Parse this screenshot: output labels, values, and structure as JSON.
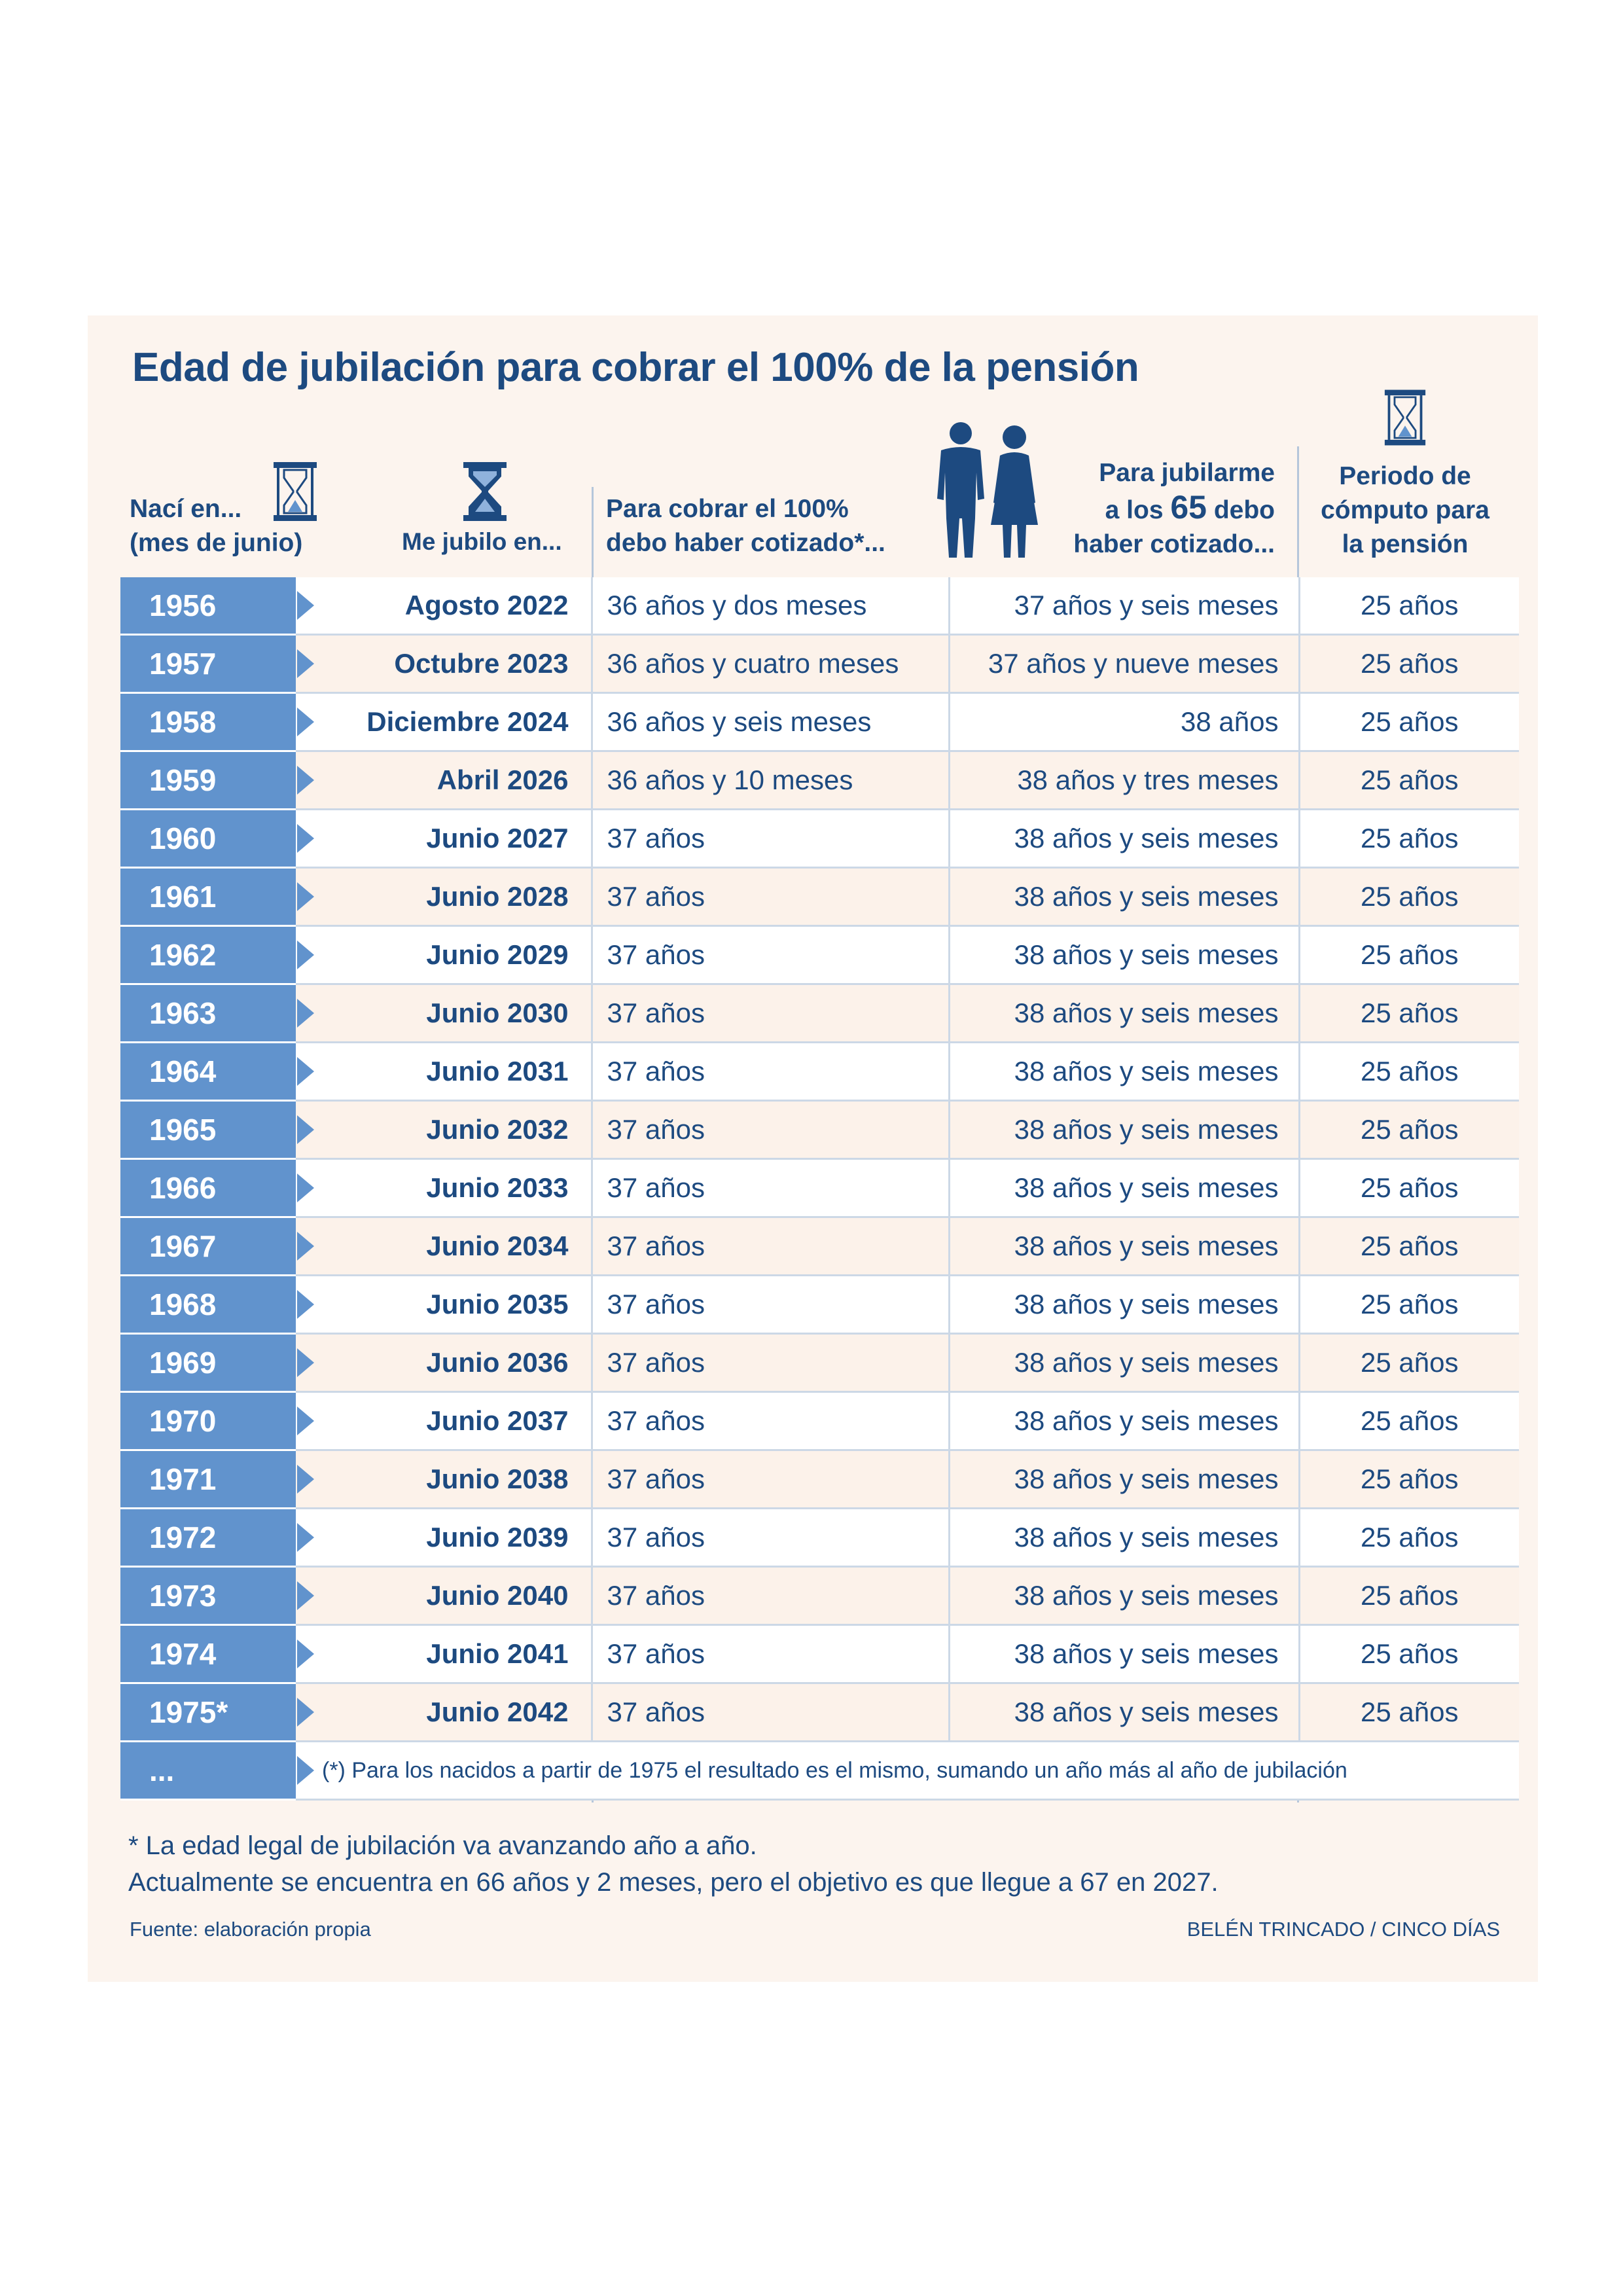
{
  "title": "Edad de jubilación para cobrar el 100% de la pensión",
  "headers": {
    "born_1": "Nací en...",
    "born_2": "(mes de junio)",
    "retire": "Me jubilo en...",
    "min_1": "Para cobrar el 100%",
    "min_2": "debo haber cotizado*...",
    "c65_1": "Para jubilarme",
    "c65_2a": "a los ",
    "c65_2b": "65",
    "c65_2c": " debo",
    "c65_3": "haber cotizado...",
    "per_1": "Periodo de",
    "per_2": "cómputo para",
    "per_3": "la pensión"
  },
  "icons": {
    "hourglass": "hourglass-icon",
    "couple": "elderly-couple-icon",
    "arrow": "arrow-right-icon"
  },
  "colors": {
    "dark_blue": "#1d4a80",
    "year_blue": "#6193cd",
    "panel_bg": "#fcf4ee"
  },
  "rows": [
    {
      "year": "1956",
      "retire": "Agosto 2022",
      "min": "36 años y dos meses",
      "c65": "37 años y seis meses",
      "period": "25 años"
    },
    {
      "year": "1957",
      "retire": "Octubre 2023",
      "min": "36 años y cuatro meses",
      "c65": "37 años y nueve meses",
      "period": "25 años"
    },
    {
      "year": "1958",
      "retire": "Diciembre 2024",
      "min": "36 años y seis meses",
      "c65": "38 años",
      "period": "25 años"
    },
    {
      "year": "1959",
      "retire": "Abril 2026",
      "min": "36 años y 10 meses",
      "c65": "38 años y tres meses",
      "period": "25 años"
    },
    {
      "year": "1960",
      "retire": "Junio 2027",
      "min": "37 años",
      "c65": "38 años y seis meses",
      "period": "25 años"
    },
    {
      "year": "1961",
      "retire": "Junio 2028",
      "min": "37 años",
      "c65": "38 años y seis meses",
      "period": "25 años"
    },
    {
      "year": "1962",
      "retire": "Junio 2029",
      "min": "37 años",
      "c65": "38 años y seis meses",
      "period": "25 años"
    },
    {
      "year": "1963",
      "retire": "Junio 2030",
      "min": "37 años",
      "c65": "38 años y seis meses",
      "period": "25 años"
    },
    {
      "year": "1964",
      "retire": "Junio 2031",
      "min": "37 años",
      "c65": "38 años y seis meses",
      "period": "25 años"
    },
    {
      "year": "1965",
      "retire": "Junio 2032",
      "min": "37 años",
      "c65": "38 años y seis meses",
      "period": "25 años"
    },
    {
      "year": "1966",
      "retire": "Junio 2033",
      "min": "37 años",
      "c65": "38 años y seis meses",
      "period": "25 años"
    },
    {
      "year": "1967",
      "retire": "Junio 2034",
      "min": "37 años",
      "c65": "38 años y seis meses",
      "period": "25 años"
    },
    {
      "year": "1968",
      "retire": "Junio 2035",
      "min": "37 años",
      "c65": "38 años y seis meses",
      "period": "25 años"
    },
    {
      "year": "1969",
      "retire": "Junio 2036",
      "min": "37 años",
      "c65": "38 años y seis meses",
      "period": "25 años"
    },
    {
      "year": "1970",
      "retire": "Junio 2037",
      "min": "37 años",
      "c65": "38 años y seis meses",
      "period": "25 años"
    },
    {
      "year": "1971",
      "retire": "Junio 2038",
      "min": "37 años",
      "c65": "38 años y seis meses",
      "period": "25 años"
    },
    {
      "year": "1972",
      "retire": "Junio 2039",
      "min": "37 años",
      "c65": "38 años y seis meses",
      "period": "25 años"
    },
    {
      "year": "1973",
      "retire": "Junio 2040",
      "min": "37 años",
      "c65": "38 años y seis meses",
      "period": "25 años"
    },
    {
      "year": "1974",
      "retire": "Junio 2041",
      "min": "37 años",
      "c65": "38 años y seis meses",
      "period": "25 años"
    },
    {
      "year": "1975*",
      "retire": "Junio 2042",
      "min": "37 años",
      "c65": "38 años y seis meses",
      "period": "25 años"
    }
  ],
  "last_row": {
    "year": "...",
    "note": "(*) Para los nacidos a partir de 1975 el resultado es el mismo, sumando un año más al año de jubilación"
  },
  "footnote": {
    "line1": "* La edad legal de jubilación va avanzando año a año.",
    "line2": "Actualmente se encuentra en 66 años y 2 meses, pero el objetivo es que llegue a 67 en 2027."
  },
  "source": "Fuente: elaboración propia",
  "credit": "BELÉN TRINCADO / CINCO DÍAS"
}
